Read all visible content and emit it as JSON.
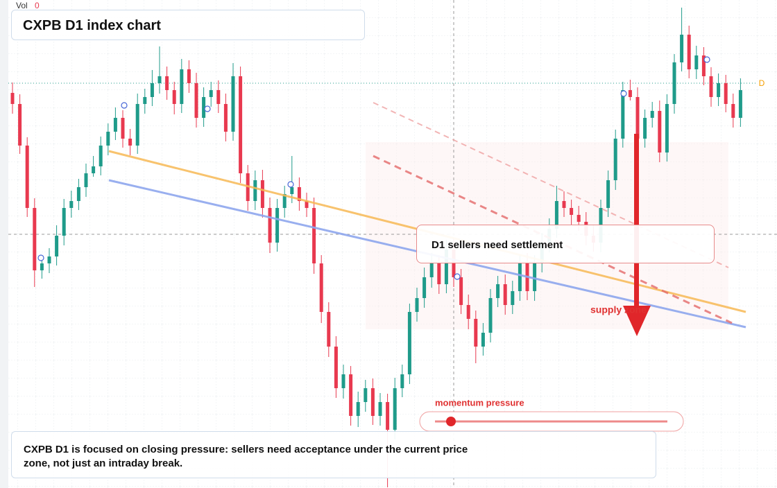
{
  "header": {
    "volume_label": "Vol",
    "volume_value": "0",
    "title": "CXPB D1 index chart",
    "price_tag": "D"
  },
  "chart_data": {
    "type": "candlestick",
    "ylim": [
      0,
      70.4
    ],
    "up_color": "#1f9b8a",
    "down_color": "#e8394f",
    "open": [
      57.0,
      55.4,
      49.4,
      40.4,
      31.4,
      32.4,
      33.4,
      36.4,
      40.4,
      41.4,
      43.4,
      45.4,
      46.4,
      49.4,
      51.4,
      53.4,
      50.4,
      49.4,
      55.4,
      56.4,
      58.4,
      59.4,
      57.4,
      55.4,
      60.4,
      58.4,
      53.4,
      56.4,
      57.4,
      55.4,
      51.4,
      59.4,
      45.4,
      41.4,
      44.4,
      40.4,
      35.4,
      40.4,
      42.4,
      43.4,
      41.4,
      40.4,
      32.4,
      25.4,
      20.4,
      14.4,
      16.4,
      10.4,
      12.4,
      14.4,
      10.4,
      12.4,
      8.4,
      14.4,
      16.4,
      25.4,
      27.4,
      30.4,
      32.4,
      29.4,
      34.4,
      30.4,
      26.4,
      24.4,
      20.4,
      22.4,
      27.4,
      29.4,
      26.4,
      28.4,
      32.4,
      28.4,
      32.4,
      35.4,
      37.4,
      41.4,
      40.4,
      39.4,
      38.4,
      36.4,
      35.4,
      40.4,
      44.4,
      50.4,
      57.4,
      56.4,
      50.4,
      53.4,
      54.4,
      48.4,
      55.4,
      61.4,
      65.4,
      60.4,
      62.4,
      59.4,
      56.4,
      58.4,
      55.4,
      53.4
    ],
    "high": [
      58.5,
      56.8,
      50.6,
      41.8,
      33.5,
      34.6,
      37.9,
      41.7,
      42.9,
      44.6,
      46.8,
      47.9,
      50.7,
      52.6,
      54.9,
      54.5,
      51.8,
      56.9,
      57.6,
      60.3,
      63.7,
      60.8,
      58.6,
      61.9,
      61.7,
      59.9,
      57.8,
      58.6,
      58.8,
      56.9,
      61.3,
      60.8,
      46.6,
      45.8,
      45.9,
      41.9,
      41.7,
      43.6,
      47.9,
      44.8,
      42.6,
      41.9,
      33.6,
      26.8,
      21.9,
      17.8,
      17.6,
      13.9,
      15.6,
      15.8,
      13.7,
      13.6,
      15.9,
      17.8,
      26.6,
      28.9,
      31.8,
      33.9,
      33.6,
      35.8,
      35.9,
      31.6,
      27.9,
      25.6,
      23.8,
      28.7,
      30.6,
      30.8,
      29.9,
      33.6,
      33.9,
      33.6,
      36.8,
      38.9,
      43.6,
      42.8,
      41.6,
      40.7,
      39.8,
      37.9,
      41.6,
      45.8,
      51.7,
      58.6,
      58.9,
      57.8,
      54.6,
      55.7,
      55.9,
      56.8,
      62.6,
      69.3,
      66.7,
      63.8,
      63.6,
      60.7,
      59.8,
      59.6,
      56.9,
      59.1
    ],
    "low": [
      54.0,
      48.2,
      39.1,
      29.0,
      30.2,
      31.0,
      32.1,
      35.0,
      39.0,
      40.1,
      42.0,
      44.9,
      45.1,
      48.0,
      50.2,
      49.1,
      48.0,
      48.2,
      54.0,
      55.1,
      56.9,
      56.0,
      53.9,
      54.1,
      57.0,
      52.0,
      52.1,
      55.0,
      54.1,
      50.0,
      50.1,
      44.0,
      40.0,
      40.1,
      39.0,
      33.9,
      34.1,
      39.0,
      41.1,
      40.0,
      39.1,
      30.9,
      23.8,
      18.9,
      13.0,
      12.9,
      9.0,
      8.8,
      11.0,
      9.1,
      9.0,
      0.1,
      7.0,
      13.1,
      15.0,
      24.0,
      26.0,
      28.9,
      28.0,
      28.1,
      29.0,
      25.1,
      22.9,
      18.0,
      19.1,
      21.0,
      26.1,
      25.0,
      25.1,
      27.0,
      27.1,
      27.0,
      31.1,
      34.0,
      36.1,
      39.1,
      38.0,
      37.1,
      35.0,
      34.1,
      34.0,
      39.1,
      43.0,
      49.1,
      55.9,
      49.0,
      49.1,
      52.0,
      47.0,
      47.1,
      54.0,
      60.1,
      59.1,
      59.0,
      58.1,
      55.0,
      55.1,
      54.2,
      52.0,
      52.1
    ],
    "close": [
      55.4,
      49.4,
      40.4,
      31.4,
      32.4,
      33.4,
      36.4,
      40.4,
      41.4,
      43.4,
      45.4,
      46.4,
      49.4,
      51.4,
      53.4,
      50.4,
      49.4,
      55.4,
      56.4,
      58.4,
      59.4,
      57.4,
      55.4,
      60.4,
      58.4,
      53.4,
      56.4,
      57.4,
      55.4,
      51.4,
      59.4,
      45.4,
      41.4,
      44.4,
      40.4,
      35.4,
      40.4,
      42.4,
      43.4,
      41.4,
      40.4,
      32.4,
      25.4,
      20.4,
      14.4,
      16.4,
      10.4,
      12.4,
      14.4,
      10.4,
      12.4,
      8.4,
      14.4,
      16.4,
      25.4,
      27.4,
      30.4,
      32.4,
      29.4,
      34.4,
      30.4,
      26.4,
      24.4,
      20.4,
      22.4,
      27.4,
      29.4,
      26.4,
      28.4,
      32.4,
      28.4,
      32.4,
      35.4,
      37.4,
      41.4,
      40.4,
      39.4,
      38.4,
      36.4,
      35.4,
      40.4,
      44.4,
      50.4,
      57.4,
      56.4,
      50.4,
      53.4,
      54.4,
      48.4,
      55.4,
      61.4,
      65.4,
      60.4,
      62.4,
      59.4,
      56.4,
      58.4,
      55.4,
      53.4,
      57.4
    ]
  },
  "annotations": {
    "callout": "D1 sellers need settlement",
    "zone": "supply zone",
    "momentum": "momentum pressure",
    "description": "CXPB D1 is focused on closing pressure: sellers need acceptance under the current price zone, not just an intraday break."
  }
}
